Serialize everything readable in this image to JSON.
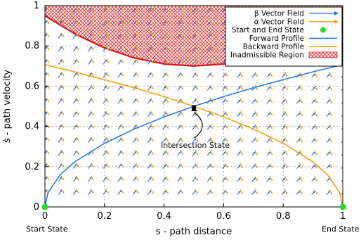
{
  "chart_data": {
    "type": "line",
    "xlabel": "s - path distance",
    "ylabel": "ṡ - path velocity",
    "xlim": [
      0,
      1
    ],
    "ylim": [
      0,
      1
    ],
    "x_ticks": [
      "0",
      "0.2",
      "0.4",
      "0.6",
      "0.8",
      "1"
    ],
    "y_ticks": [
      "0",
      "0.2",
      "0.4",
      "0.6",
      "0.8",
      "1"
    ],
    "grid": true,
    "legend_position": "top-right",
    "start_label": "Start State",
    "end_label": "End State",
    "intersection_label": "Intersection State",
    "intersection_point": [
      0.5,
      0.495
    ],
    "start_point": [
      0,
      0
    ],
    "end_point": [
      1,
      0
    ],
    "colors": {
      "beta": "#1f6fd6",
      "alpha": "#f0a018",
      "forward": "#2a7de1",
      "backward": "#f0a018",
      "boundary": "#e01010",
      "inadmissible": "#e02020",
      "start_end": "#22dd22"
    },
    "series": [
      {
        "name": "β Vector Field",
        "kind": "vector-field"
      },
      {
        "name": "α Vector Field",
        "kind": "vector-field"
      },
      {
        "name": "Start and End State",
        "kind": "points"
      },
      {
        "name": "Forward Profile",
        "kind": "line",
        "x": [
          0,
          0.01,
          0.05,
          0.1,
          0.2,
          0.3,
          0.4,
          0.5,
          0.6,
          0.7,
          0.8,
          0.9,
          1.0
        ],
        "y": [
          0,
          0.07,
          0.158,
          0.224,
          0.316,
          0.387,
          0.447,
          0.5,
          0.548,
          0.592,
          0.632,
          0.671,
          0.707
        ]
      },
      {
        "name": "Backward Profile",
        "kind": "line",
        "x": [
          0,
          0.1,
          0.2,
          0.3,
          0.4,
          0.5,
          0.6,
          0.7,
          0.8,
          0.9,
          0.95,
          0.99,
          1.0
        ],
        "y": [
          0.707,
          0.671,
          0.632,
          0.592,
          0.548,
          0.5,
          0.447,
          0.387,
          0.316,
          0.224,
          0.158,
          0.07,
          0
        ]
      },
      {
        "name": "Inadmissible Region",
        "kind": "region",
        "boundary_x": [
          0,
          0.1,
          0.2,
          0.3,
          0.4,
          0.5,
          0.6,
          0.7,
          0.8,
          0.9,
          1.0
        ],
        "boundary_y": [
          0.95,
          0.86,
          0.79,
          0.74,
          0.71,
          0.7,
          0.71,
          0.74,
          0.79,
          0.86,
          0.95
        ]
      }
    ]
  }
}
